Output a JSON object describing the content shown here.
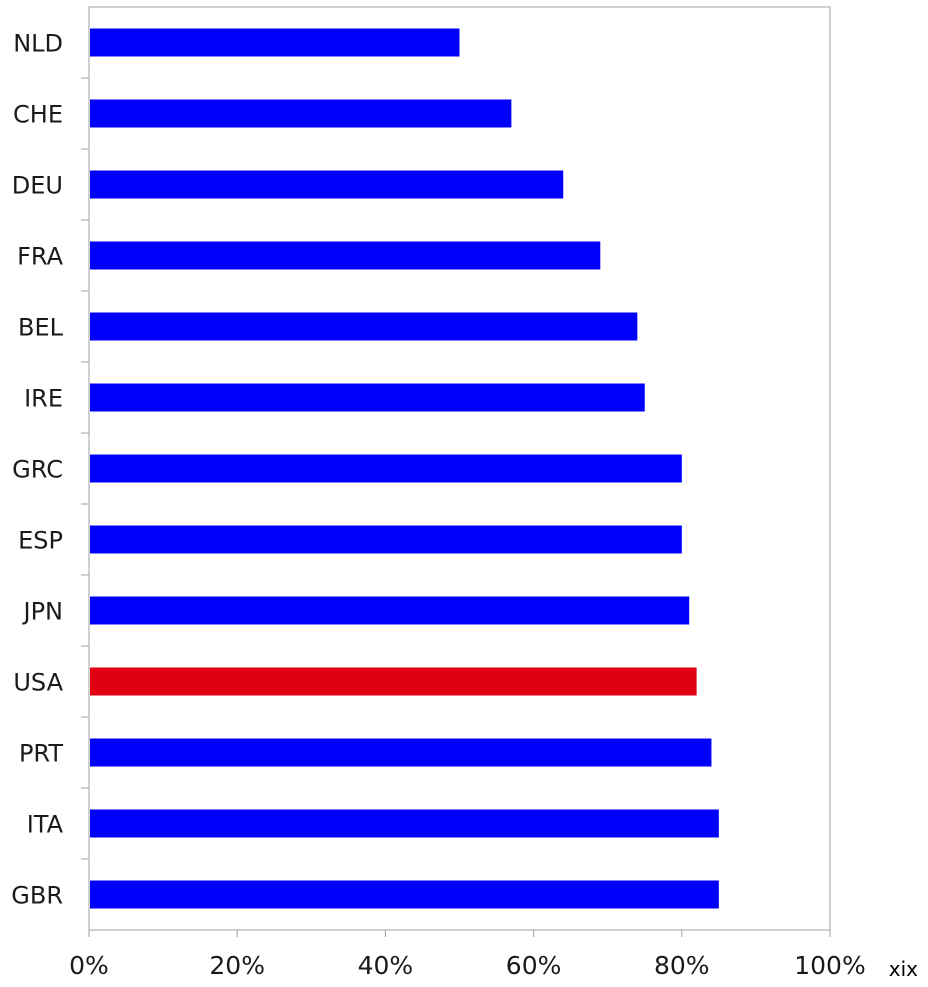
{
  "chart_data": {
    "type": "bar",
    "orientation": "horizontal",
    "categories": [
      "NLD",
      "CHE",
      "DEU",
      "FRA",
      "BEL",
      "IRE",
      "GRC",
      "ESP",
      "JPN",
      "USA",
      "PRT",
      "ITA",
      "GBR"
    ],
    "values": [
      0.5,
      0.57,
      0.64,
      0.69,
      0.74,
      0.75,
      0.8,
      0.8,
      0.81,
      0.82,
      0.84,
      0.85,
      0.85
    ],
    "highlight": "USA",
    "colors": {
      "bar": "#0000ff",
      "highlight": "#e00012",
      "axis": "#a0a0a0"
    },
    "xlim": [
      0,
      1
    ],
    "xticks": [
      0,
      0.2,
      0.4,
      0.6,
      0.8,
      1.0
    ],
    "xtick_labels": [
      "0%",
      "20%",
      "40%",
      "60%",
      "80%",
      "100%"
    ],
    "grid": false
  },
  "note": "xix"
}
